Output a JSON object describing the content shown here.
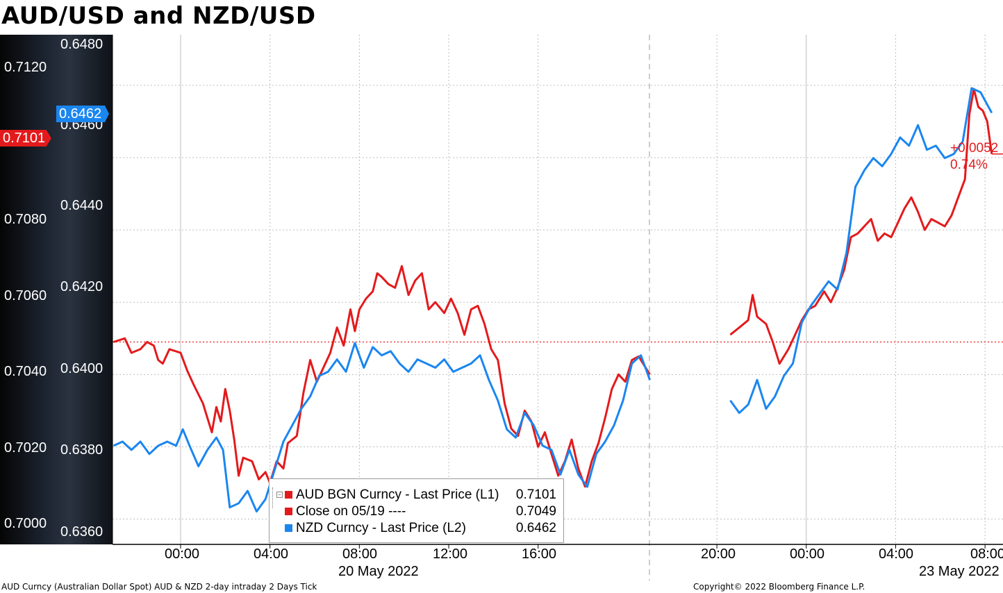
{
  "title": "AUD/USD and NZD/USD",
  "left_axis": {
    "ticks": [
      "0.7120",
      "0.7080",
      "0.7060",
      "0.7040",
      "0.7020",
      "0.7000"
    ],
    "tick_values": [
      0.712,
      0.708,
      0.706,
      0.704,
      0.702,
      0.7
    ],
    "last_tag": "0.7101",
    "tag_color": "#e31a1c"
  },
  "right_axis": {
    "ticks": [
      "0.6480",
      "0.6460",
      "0.6440",
      "0.6420",
      "0.6400",
      "0.6380",
      "0.6360"
    ],
    "tick_values": [
      0.648,
      0.646,
      0.644,
      0.642,
      0.64,
      0.638,
      0.636
    ],
    "last_tag": "0.6462",
    "tag_color": "#1a86f0"
  },
  "x_axis": {
    "ticks": [
      "00:00",
      "04:00",
      "08:00",
      "12:00",
      "16:00",
      "20:00",
      "00:00",
      "04:00",
      "08:00"
    ],
    "dates": [
      "20 May 2022",
      "23 May 2022"
    ]
  },
  "change": {
    "abs": "+0.0052",
    "pct": "0.74%"
  },
  "legend": [
    {
      "label": "AUD BGN Curncy - Last Price (L1)",
      "value": "0.7101",
      "color": "#e31a1c"
    },
    {
      "label": "Close on 05/19 ----",
      "value": "0.7049",
      "color": "#e31a1c"
    },
    {
      "label": "NZD Curncy - Last Price (L2)",
      "value": "0.6462",
      "color": "#1a86f0"
    }
  ],
  "footer": {
    "left": "AUD Curncy (Australian Dollar Spot) AUD & NZD 2-day intraday 2 Days  Tick",
    "right": "Copyright© 2022 Bloomberg Finance L.P."
  },
  "chart_data": {
    "type": "line",
    "title": "AUD/USD and NZD/USD",
    "x_unit": "hours",
    "xlim": [
      -3,
      38
    ],
    "ylim_left": [
      0.6993,
      0.7134
    ],
    "ylim_right": [
      0.6357,
      0.6481
    ],
    "grid": true,
    "legend_position": "bottom-left",
    "reference_line": {
      "name": "Close on 05/19",
      "value": 0.7049,
      "axis": "left"
    },
    "series": [
      {
        "name": "AUD BGN Curncy - Last Price (L1)",
        "axis": "left",
        "color": "#e31a1c",
        "segments": [
          [
            [
              -3,
              0.7049
            ],
            [
              -2.5,
              0.705
            ],
            [
              -2.2,
              0.7046
            ],
            [
              -1.8,
              0.7047
            ],
            [
              -1.5,
              0.7049
            ],
            [
              -1.2,
              0.7048
            ],
            [
              -1,
              0.7044
            ],
            [
              -0.8,
              0.7043
            ],
            [
              -0.5,
              0.7047
            ],
            [
              0,
              0.7046
            ],
            [
              0.3,
              0.7041
            ],
            [
              0.6,
              0.7037
            ],
            [
              1,
              0.7032
            ],
            [
              1.2,
              0.7028
            ],
            [
              1.4,
              0.7024
            ],
            [
              1.6,
              0.7031
            ],
            [
              1.8,
              0.7027
            ],
            [
              2,
              0.7036
            ],
            [
              2.2,
              0.703
            ],
            [
              2.4,
              0.7022
            ],
            [
              2.6,
              0.7012
            ],
            [
              2.8,
              0.7017
            ],
            [
              3.2,
              0.7016
            ],
            [
              3.5,
              0.7011
            ],
            [
              3.8,
              0.7013
            ],
            [
              4,
              0.701
            ],
            [
              4.3,
              0.7016
            ],
            [
              4.6,
              0.7014
            ],
            [
              4.8,
              0.7021
            ],
            [
              5.2,
              0.7023
            ],
            [
              5.5,
              0.7035
            ],
            [
              5.8,
              0.7044
            ],
            [
              6.1,
              0.7038
            ],
            [
              6.4,
              0.7042
            ],
            [
              6.7,
              0.7046
            ],
            [
              7,
              0.7053
            ],
            [
              7.3,
              0.7048
            ],
            [
              7.6,
              0.7058
            ],
            [
              7.8,
              0.7052
            ],
            [
              8,
              0.7058
            ],
            [
              8.3,
              0.7061
            ],
            [
              8.6,
              0.7063
            ],
            [
              8.8,
              0.7068
            ],
            [
              9,
              0.7067
            ],
            [
              9.3,
              0.7065
            ],
            [
              9.6,
              0.7064
            ],
            [
              9.9,
              0.707
            ],
            [
              10.2,
              0.7062
            ],
            [
              10.5,
              0.7066
            ],
            [
              10.8,
              0.7068
            ],
            [
              11.1,
              0.7058
            ],
            [
              11.4,
              0.706
            ],
            [
              11.8,
              0.7057
            ],
            [
              12.1,
              0.7061
            ],
            [
              12.4,
              0.7057
            ],
            [
              12.7,
              0.7051
            ],
            [
              13,
              0.7058
            ],
            [
              13.3,
              0.7059
            ],
            [
              13.6,
              0.7054
            ],
            [
              13.9,
              0.7047
            ],
            [
              14.2,
              0.7044
            ],
            [
              14.5,
              0.7032
            ],
            [
              14.8,
              0.7025
            ],
            [
              15.1,
              0.7023
            ],
            [
              15.4,
              0.703
            ],
            [
              15.7,
              0.7027
            ],
            [
              16,
              0.702
            ],
            [
              16.3,
              0.7024
            ],
            [
              16.6,
              0.7018
            ],
            [
              16.9,
              0.7012
            ],
            [
              17.2,
              0.7016
            ],
            [
              17.5,
              0.7022
            ],
            [
              17.8,
              0.7014
            ],
            [
              18.1,
              0.7009
            ],
            [
              18.4,
              0.7016
            ],
            [
              18.7,
              0.7021
            ],
            [
              19,
              0.7028
            ],
            [
              19.3,
              0.7036
            ],
            [
              19.6,
              0.704
            ],
            [
              19.9,
              0.7038
            ],
            [
              20.2,
              0.7044
            ],
            [
              20.5,
              0.7045
            ],
            [
              20.8,
              0.7042
            ],
            [
              21,
              0.704
            ]
          ],
          [
            [
              24.6,
              0.7051
            ],
            [
              25,
              0.7053
            ],
            [
              25.4,
              0.7055
            ],
            [
              25.6,
              0.7062
            ],
            [
              25.8,
              0.7056
            ],
            [
              26.2,
              0.7054
            ],
            [
              26.5,
              0.7049
            ],
            [
              26.8,
              0.7043
            ],
            [
              27.2,
              0.7047
            ],
            [
              27.5,
              0.7051
            ],
            [
              27.8,
              0.7055
            ],
            [
              28.1,
              0.7058
            ],
            [
              28.4,
              0.7059
            ],
            [
              28.8,
              0.7063
            ],
            [
              29.1,
              0.706
            ],
            [
              29.4,
              0.7064
            ],
            [
              29.7,
              0.7069
            ],
            [
              30,
              0.7078
            ],
            [
              30.3,
              0.7079
            ],
            [
              30.6,
              0.7081
            ],
            [
              30.9,
              0.7083
            ],
            [
              31.2,
              0.7077
            ],
            [
              31.5,
              0.7079
            ],
            [
              31.8,
              0.7078
            ],
            [
              32.1,
              0.7082
            ],
            [
              32.4,
              0.7086
            ],
            [
              32.7,
              0.7089
            ],
            [
              33,
              0.7085
            ],
            [
              33.3,
              0.708
            ],
            [
              33.6,
              0.7083
            ],
            [
              33.9,
              0.7082
            ],
            [
              34.2,
              0.7081
            ],
            [
              34.5,
              0.7084
            ],
            [
              34.8,
              0.7089
            ],
            [
              35.1,
              0.7094
            ],
            [
              35.3,
              0.7112
            ],
            [
              35.5,
              0.7119
            ],
            [
              35.7,
              0.7114
            ],
            [
              35.9,
              0.7113
            ],
            [
              36.1,
              0.711
            ],
            [
              36.3,
              0.7101
            ]
          ]
        ]
      },
      {
        "name": "NZD Curncy - Last Price (L2)",
        "axis": "right",
        "color": "#1a86f0",
        "segments": [
          [
            [
              -3,
              0.6381
            ],
            [
              -2.6,
              0.6382
            ],
            [
              -2.2,
              0.638
            ],
            [
              -1.8,
              0.6382
            ],
            [
              -1.4,
              0.6379
            ],
            [
              -1,
              0.6381
            ],
            [
              -0.6,
              0.6382
            ],
            [
              -0.2,
              0.6381
            ],
            [
              0.1,
              0.6385
            ],
            [
              0.4,
              0.6381
            ],
            [
              0.8,
              0.6376
            ],
            [
              1.2,
              0.638
            ],
            [
              1.6,
              0.6383
            ],
            [
              1.9,
              0.638
            ],
            [
              2.2,
              0.6366
            ],
            [
              2.6,
              0.6367
            ],
            [
              3,
              0.637
            ],
            [
              3.4,
              0.6365
            ],
            [
              3.8,
              0.6368
            ],
            [
              4.2,
              0.6375
            ],
            [
              4.6,
              0.6382
            ],
            [
              5,
              0.6386
            ],
            [
              5.4,
              0.639
            ],
            [
              5.8,
              0.6393
            ],
            [
              6.2,
              0.6398
            ],
            [
              6.6,
              0.6399
            ],
            [
              7,
              0.6402
            ],
            [
              7.4,
              0.6399
            ],
            [
              7.8,
              0.6406
            ],
            [
              8.2,
              0.64
            ],
            [
              8.6,
              0.6405
            ],
            [
              9,
              0.6403
            ],
            [
              9.4,
              0.6404
            ],
            [
              9.8,
              0.6401
            ],
            [
              10.2,
              0.6399
            ],
            [
              10.6,
              0.6402
            ],
            [
              11,
              0.6401
            ],
            [
              11.4,
              0.64
            ],
            [
              11.8,
              0.6402
            ],
            [
              12.2,
              0.6399
            ],
            [
              12.6,
              0.64
            ],
            [
              13,
              0.6401
            ],
            [
              13.4,
              0.6403
            ],
            [
              13.8,
              0.6397
            ],
            [
              14.2,
              0.6392
            ],
            [
              14.6,
              0.6385
            ],
            [
              15,
              0.6383
            ],
            [
              15.4,
              0.6389
            ],
            [
              15.8,
              0.6386
            ],
            [
              16.2,
              0.6381
            ],
            [
              16.6,
              0.638
            ],
            [
              17,
              0.6374
            ],
            [
              17.4,
              0.638
            ],
            [
              17.8,
              0.6374
            ],
            [
              18.2,
              0.6371
            ],
            [
              18.6,
              0.6379
            ],
            [
              19,
              0.6382
            ],
            [
              19.4,
              0.6386
            ],
            [
              19.8,
              0.6392
            ],
            [
              20.2,
              0.6401
            ],
            [
              20.6,
              0.6403
            ],
            [
              21,
              0.6397
            ]
          ],
          [
            [
              24.6,
              0.6392
            ],
            [
              25,
              0.6389
            ],
            [
              25.4,
              0.6391
            ],
            [
              25.8,
              0.6397
            ],
            [
              26.2,
              0.639
            ],
            [
              26.6,
              0.6393
            ],
            [
              27,
              0.6398
            ],
            [
              27.4,
              0.6401
            ],
            [
              27.8,
              0.6411
            ],
            [
              28.2,
              0.6415
            ],
            [
              28.6,
              0.6418
            ],
            [
              29,
              0.6421
            ],
            [
              29.4,
              0.6419
            ],
            [
              29.8,
              0.6428
            ],
            [
              30.2,
              0.6444
            ],
            [
              30.6,
              0.6448
            ],
            [
              31,
              0.6451
            ],
            [
              31.4,
              0.6449
            ],
            [
              31.8,
              0.6452
            ],
            [
              32.2,
              0.6456
            ],
            [
              32.6,
              0.6454
            ],
            [
              33,
              0.6459
            ],
            [
              33.4,
              0.6453
            ],
            [
              33.8,
              0.6454
            ],
            [
              34.2,
              0.6451
            ],
            [
              34.6,
              0.6452
            ],
            [
              35,
              0.6455
            ],
            [
              35.4,
              0.6468
            ],
            [
              35.8,
              0.6467
            ],
            [
              36.1,
              0.6464
            ],
            [
              36.3,
              0.6462
            ]
          ]
        ]
      }
    ]
  }
}
